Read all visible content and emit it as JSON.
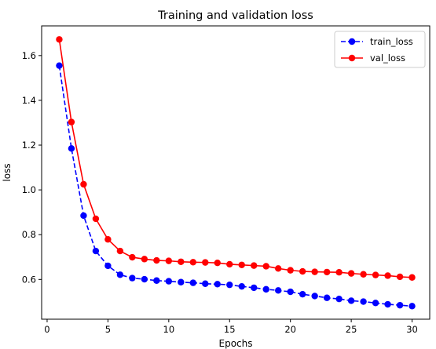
{
  "chart_data": {
    "type": "line",
    "title": "Training and validation loss",
    "xlabel": "Epochs",
    "ylabel": "loss",
    "xlim": [
      -0.45,
      31.45
    ],
    "ylim": [
      0.4225,
      1.7325
    ],
    "xticks": [
      0,
      5,
      10,
      15,
      20,
      25,
      30
    ],
    "xtick_labels": [
      "0",
      "5",
      "10",
      "15",
      "20",
      "25",
      "30"
    ],
    "yticks": [
      0.6,
      0.8,
      1.0,
      1.2,
      1.4,
      1.6
    ],
    "ytick_labels": [
      "0.6",
      "0.8",
      "1.0",
      "1.2",
      "1.4",
      "1.6"
    ],
    "grid": false,
    "legend_position": "top-right",
    "x": [
      1,
      2,
      3,
      4,
      5,
      6,
      7,
      8,
      9,
      10,
      11,
      12,
      13,
      14,
      15,
      16,
      17,
      18,
      19,
      20,
      21,
      22,
      23,
      24,
      25,
      26,
      27,
      28,
      29,
      30
    ],
    "series": [
      {
        "name": "train_loss",
        "color": "#0000ff",
        "linestyle": "dashed",
        "marker": "circle",
        "values": [
          1.555,
          1.185,
          0.885,
          0.727,
          0.661,
          0.621,
          0.606,
          0.601,
          0.595,
          0.592,
          0.588,
          0.585,
          0.581,
          0.579,
          0.576,
          0.569,
          0.563,
          0.556,
          0.551,
          0.545,
          0.534,
          0.526,
          0.518,
          0.513,
          0.505,
          0.501,
          0.495,
          0.489,
          0.485,
          0.481
        ]
      },
      {
        "name": "val_loss",
        "color": "#ff0000",
        "linestyle": "solid",
        "marker": "circle",
        "values": [
          1.672,
          1.303,
          1.025,
          0.871,
          0.779,
          0.727,
          0.699,
          0.691,
          0.685,
          0.683,
          0.679,
          0.677,
          0.676,
          0.674,
          0.668,
          0.665,
          0.662,
          0.659,
          0.649,
          0.641,
          0.636,
          0.634,
          0.633,
          0.632,
          0.627,
          0.623,
          0.62,
          0.617,
          0.612,
          0.609
        ]
      }
    ]
  }
}
